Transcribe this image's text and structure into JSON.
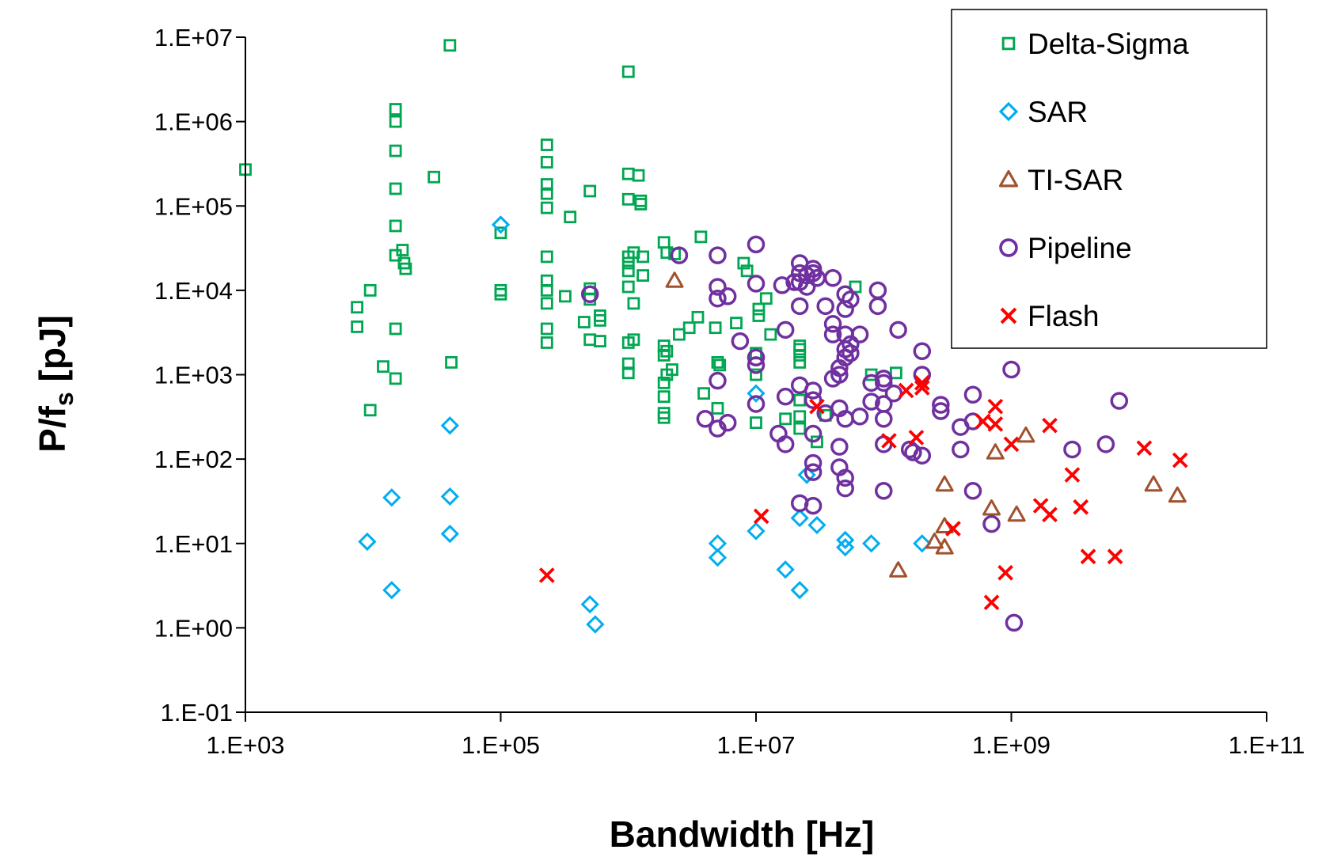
{
  "chart_data": {
    "type": "scatter",
    "title": "",
    "xlabel": "Bandwidth [Hz]",
    "ylabel_main": "P/f",
    "ylabel_sub": "s",
    "ylabel_tail": " [pJ]",
    "x_scale": "log",
    "y_scale": "log",
    "xlim": [
      1000,
      100000000000
    ],
    "ylim": [
      0.1,
      10000000
    ],
    "x_ticks": [
      {
        "value": 1000,
        "label": "1.E+03"
      },
      {
        "value": 100000,
        "label": "1.E+05"
      },
      {
        "value": 10000000,
        "label": "1.E+07"
      },
      {
        "value": 1000000000,
        "label": "1.E+09"
      },
      {
        "value": 100000000000,
        "label": "1.E+11"
      }
    ],
    "y_ticks": [
      {
        "value": 0.1,
        "label": "1.E-01"
      },
      {
        "value": 1,
        "label": "1.E+00"
      },
      {
        "value": 10,
        "label": "1.E+01"
      },
      {
        "value": 100,
        "label": "1.E+02"
      },
      {
        "value": 1000,
        "label": "1.E+03"
      },
      {
        "value": 10000,
        "label": "1.E+04"
      },
      {
        "value": 100000,
        "label": "1.E+05"
      },
      {
        "value": 1000000,
        "label": "1.E+06"
      },
      {
        "value": 10000000,
        "label": "1.E+07"
      }
    ],
    "grid": false,
    "legend_position": "top-right",
    "series": [
      {
        "name": "Delta-Sigma",
        "marker": "square",
        "color": "#00a651",
        "points": [
          [
            1000,
            270000
          ],
          [
            7500,
            6300
          ],
          [
            7500,
            3700
          ],
          [
            9500,
            10000
          ],
          [
            9500,
            380
          ],
          [
            12000,
            1250
          ],
          [
            15000,
            1400000
          ],
          [
            15000,
            1000000
          ],
          [
            15000,
            450000
          ],
          [
            15000,
            160000
          ],
          [
            15000,
            58000
          ],
          [
            15000,
            26000
          ],
          [
            15000,
            3500
          ],
          [
            15000,
            900
          ],
          [
            17000,
            30000
          ],
          [
            17500,
            21000
          ],
          [
            18000,
            18000
          ],
          [
            30000,
            220000
          ],
          [
            40000,
            8000000
          ],
          [
            41000,
            1400
          ],
          [
            100000,
            48000
          ],
          [
            100000,
            10000
          ],
          [
            100000,
            9000
          ],
          [
            230000,
            530000
          ],
          [
            230000,
            330000
          ],
          [
            230000,
            180000
          ],
          [
            230000,
            140000
          ],
          [
            230000,
            95000
          ],
          [
            230000,
            25000
          ],
          [
            230000,
            13000
          ],
          [
            230000,
            10000
          ],
          [
            230000,
            7000
          ],
          [
            230000,
            3500
          ],
          [
            230000,
            2400
          ],
          [
            320000,
            8500
          ],
          [
            350000,
            74000
          ],
          [
            450000,
            4200
          ],
          [
            500000,
            150000
          ],
          [
            500000,
            10500
          ],
          [
            500000,
            7800
          ],
          [
            500000,
            2600
          ],
          [
            600000,
            5000
          ],
          [
            600000,
            4400
          ],
          [
            600000,
            2500
          ],
          [
            1000000,
            3900000
          ],
          [
            1000000,
            240000
          ],
          [
            1000000,
            120000
          ],
          [
            1000000,
            25000
          ],
          [
            1000000,
            21000
          ],
          [
            1000000,
            17000
          ],
          [
            1000000,
            11000
          ],
          [
            1000000,
            2400
          ],
          [
            1000000,
            1350
          ],
          [
            1000000,
            1050
          ],
          [
            1100000,
            28000
          ],
          [
            1100000,
            7000
          ],
          [
            1100000,
            2600
          ],
          [
            1200000,
            230000
          ],
          [
            1250000,
            115000
          ],
          [
            1250000,
            105000
          ],
          [
            1300000,
            25000
          ],
          [
            1300000,
            15000
          ],
          [
            1900000,
            37000
          ],
          [
            1900000,
            2200
          ],
          [
            1900000,
            1700
          ],
          [
            1900000,
            800
          ],
          [
            1900000,
            550
          ],
          [
            1900000,
            350
          ],
          [
            1900000,
            310
          ],
          [
            2000000,
            28000
          ],
          [
            2000000,
            1900
          ],
          [
            2000000,
            1000
          ],
          [
            2200000,
            1150
          ],
          [
            2300000,
            27000
          ],
          [
            2500000,
            3000
          ],
          [
            3000000,
            3600
          ],
          [
            3500000,
            4800
          ],
          [
            3700000,
            43000
          ],
          [
            3900000,
            600
          ],
          [
            4800000,
            3600
          ],
          [
            5000000,
            1400
          ],
          [
            5000000,
            400
          ],
          [
            5200000,
            1300
          ],
          [
            7000000,
            4100
          ],
          [
            8000000,
            21000
          ],
          [
            8500000,
            17000
          ],
          [
            10000000,
            1800
          ],
          [
            10000000,
            1000
          ],
          [
            10000000,
            270
          ],
          [
            10500000,
            5000
          ],
          [
            10500000,
            6000
          ],
          [
            12000000,
            8000
          ],
          [
            13000000,
            3000
          ],
          [
            17000000,
            300
          ],
          [
            22000000,
            2200
          ],
          [
            22000000,
            2000
          ],
          [
            22000000,
            1700
          ],
          [
            22000000,
            1400
          ],
          [
            22000000,
            500
          ],
          [
            22000000,
            320
          ],
          [
            22000000,
            230
          ],
          [
            30000000,
            160
          ],
          [
            35000000,
            330
          ],
          [
            60000000,
            11000
          ],
          [
            80000000,
            1000
          ],
          [
            125000000,
            1050
          ]
        ]
      },
      {
        "name": "SAR",
        "marker": "diamond",
        "color": "#00aeef",
        "points": [
          [
            9000,
            10.5
          ],
          [
            14000,
            35
          ],
          [
            14000,
            2.8
          ],
          [
            40000,
            250
          ],
          [
            40000,
            36
          ],
          [
            40000,
            13
          ],
          [
            100000,
            60000
          ],
          [
            500000,
            1.9
          ],
          [
            550000,
            1.1
          ],
          [
            5000000,
            10
          ],
          [
            5000000,
            6.8
          ],
          [
            10000000,
            600
          ],
          [
            10000000,
            14
          ],
          [
            17000000,
            4.9
          ],
          [
            22000000,
            20
          ],
          [
            22000000,
            2.8
          ],
          [
            25000000,
            65
          ],
          [
            30000000,
            16.5
          ],
          [
            50000000,
            11
          ],
          [
            50000000,
            9
          ],
          [
            80000000,
            10
          ],
          [
            200000000,
            10
          ]
        ]
      },
      {
        "name": "TI-SAR",
        "marker": "triangle",
        "color": "#a0522d",
        "points": [
          [
            2300000,
            13000
          ],
          [
            130000000,
            4.8
          ],
          [
            250000000,
            10.5
          ],
          [
            300000000,
            50
          ],
          [
            300000000,
            16
          ],
          [
            300000000,
            9
          ],
          [
            700000000,
            26
          ],
          [
            750000000,
            120
          ],
          [
            1100000000,
            22
          ],
          [
            1300000000,
            190
          ],
          [
            13000000000,
            50
          ],
          [
            20000000000,
            37
          ]
        ]
      },
      {
        "name": "Pipeline",
        "marker": "circle",
        "color": "#7030a0",
        "points": [
          [
            500000,
            9000
          ],
          [
            2500000,
            26000
          ],
          [
            4000000,
            300
          ],
          [
            5000000,
            26000
          ],
          [
            5000000,
            11000
          ],
          [
            5000000,
            8000
          ],
          [
            5000000,
            850
          ],
          [
            5000000,
            230
          ],
          [
            6000000,
            8500
          ],
          [
            6000000,
            270
          ],
          [
            7500000,
            2500
          ],
          [
            10000000,
            35000
          ],
          [
            10000000,
            12000
          ],
          [
            10000000,
            1600
          ],
          [
            10000000,
            1300
          ],
          [
            10000000,
            450
          ],
          [
            15000000,
            200
          ],
          [
            16000000,
            11500
          ],
          [
            17000000,
            3400
          ],
          [
            17000000,
            550
          ],
          [
            17000000,
            150
          ],
          [
            20000000,
            12500
          ],
          [
            22000000,
            21000
          ],
          [
            22000000,
            16000
          ],
          [
            22000000,
            12500
          ],
          [
            22000000,
            6500
          ],
          [
            22000000,
            750
          ],
          [
            22000000,
            30
          ],
          [
            25000000,
            15000
          ],
          [
            25000000,
            11000
          ],
          [
            28000000,
            18000
          ],
          [
            28000000,
            16000
          ],
          [
            28000000,
            650
          ],
          [
            28000000,
            500
          ],
          [
            28000000,
            200
          ],
          [
            28000000,
            90
          ],
          [
            28000000,
            70
          ],
          [
            28000000,
            28
          ],
          [
            30000000,
            14000
          ],
          [
            35000000,
            6500
          ],
          [
            35000000,
            350
          ],
          [
            40000000,
            14000
          ],
          [
            40000000,
            4000
          ],
          [
            40000000,
            3000
          ],
          [
            40000000,
            900
          ],
          [
            45000000,
            1200
          ],
          [
            45000000,
            1000
          ],
          [
            45000000,
            400
          ],
          [
            45000000,
            140
          ],
          [
            45000000,
            80
          ],
          [
            50000000,
            9000
          ],
          [
            50000000,
            6000
          ],
          [
            50000000,
            3000
          ],
          [
            50000000,
            2000
          ],
          [
            50000000,
            1600
          ],
          [
            50000000,
            300
          ],
          [
            50000000,
            60
          ],
          [
            50000000,
            45
          ],
          [
            55000000,
            7800
          ],
          [
            55000000,
            2300
          ],
          [
            55000000,
            1800
          ],
          [
            65000000,
            3000
          ],
          [
            65000000,
            320
          ],
          [
            80000000,
            800
          ],
          [
            80000000,
            480
          ],
          [
            90000000,
            10000
          ],
          [
            90000000,
            6500
          ],
          [
            100000000,
            900
          ],
          [
            100000000,
            800
          ],
          [
            100000000,
            450
          ],
          [
            100000000,
            300
          ],
          [
            100000000,
            150
          ],
          [
            100000000,
            42
          ],
          [
            120000000,
            600
          ],
          [
            130000000,
            3400
          ],
          [
            160000000,
            130
          ],
          [
            170000000,
            120
          ],
          [
            200000000,
            1900
          ],
          [
            200000000,
            1000
          ],
          [
            200000000,
            110
          ],
          [
            280000000,
            440
          ],
          [
            280000000,
            370
          ],
          [
            400000000,
            130
          ],
          [
            400000000,
            240
          ],
          [
            500000000,
            580
          ],
          [
            500000000,
            280
          ],
          [
            500000000,
            42
          ],
          [
            700000000,
            17
          ],
          [
            1000000000,
            1150
          ],
          [
            1050000000,
            1.15
          ],
          [
            3000000000,
            130
          ],
          [
            5500000000,
            150
          ],
          [
            7000000000,
            490
          ]
        ]
      },
      {
        "name": "Flash",
        "marker": "x",
        "color": "#ff0000",
        "points": [
          [
            230000,
            4.2
          ],
          [
            11000000,
            21
          ],
          [
            30000000,
            420
          ],
          [
            110000000,
            165
          ],
          [
            150000000,
            650
          ],
          [
            180000000,
            180
          ],
          [
            200000000,
            800
          ],
          [
            200000000,
            700
          ],
          [
            350000000,
            15
          ],
          [
            600000000,
            280
          ],
          [
            700000000,
            2
          ],
          [
            750000000,
            420
          ],
          [
            750000000,
            260
          ],
          [
            900000000,
            4.5
          ],
          [
            1000000000,
            150
          ],
          [
            1700000000,
            28
          ],
          [
            2000000000,
            22
          ],
          [
            2000000000,
            250
          ],
          [
            3000000000,
            65
          ],
          [
            3500000000,
            27
          ],
          [
            4000000000,
            7
          ],
          [
            6500000000,
            7
          ],
          [
            11000000000,
            135
          ],
          [
            21000000000,
            97
          ]
        ]
      }
    ]
  }
}
